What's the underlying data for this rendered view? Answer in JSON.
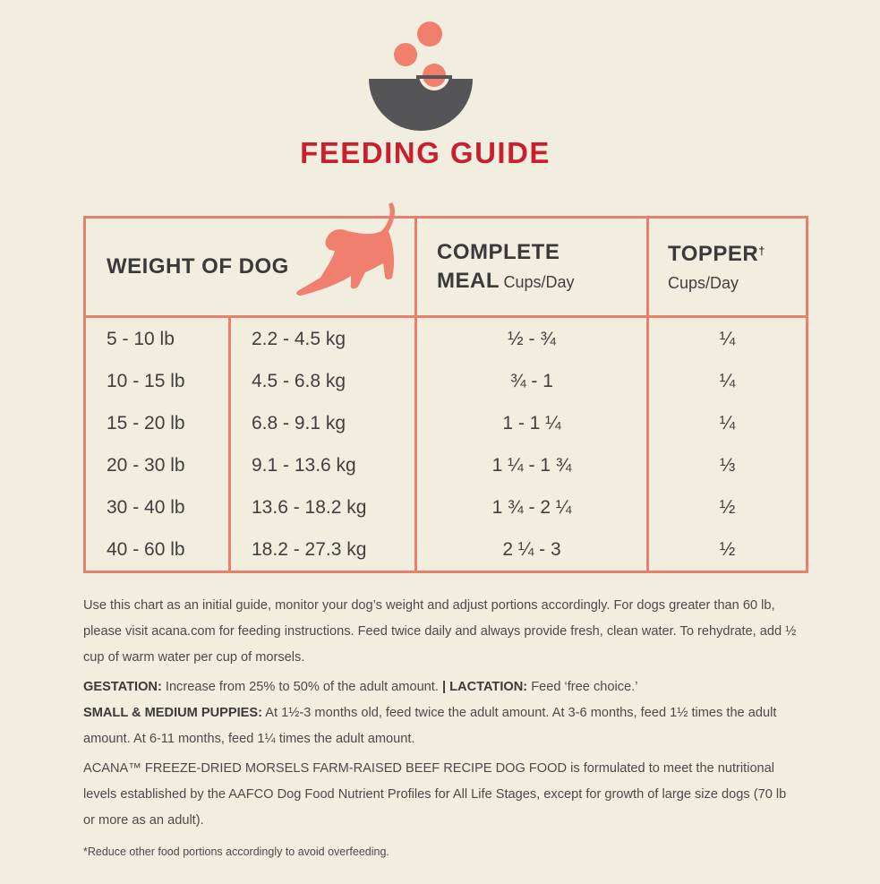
{
  "header": {
    "title": "FEEDING GUIDE"
  },
  "table": {
    "columns": {
      "weight": "WEIGHT OF DOG",
      "complete": {
        "line1": "COMPLETE",
        "line2": "MEAL",
        "unit": "Cups/Day"
      },
      "topper": {
        "title": "TOPPER",
        "mark": "†",
        "unit": "Cups/Day"
      }
    },
    "rows": [
      [
        "5 - 10 lb",
        "2.2 - 4.5 kg",
        "½ - ¾",
        "¼"
      ],
      [
        "10 - 15 lb",
        "4.5 - 6.8 kg",
        "¾ - 1",
        "¼"
      ],
      [
        "15 - 20 lb",
        "6.8 - 9.1 kg",
        "1 - 1 ¼",
        "¼"
      ],
      [
        "20 - 30 lb",
        "9.1 - 13.6 kg",
        "1 ¼ - 1 ¾",
        "⅓"
      ],
      [
        "30 - 40 lb",
        "13.6 - 18.2 kg",
        "1 ¾ - 2 ¼",
        "½"
      ],
      [
        "40 - 60 lb",
        "18.2 - 27.3 kg",
        "2 ¼ - 3",
        "½"
      ]
    ]
  },
  "notes": {
    "intro": "Use this chart as an initial guide, monitor your dog’s weight and adjust portions accordingly. For dogs greater than 60 lb, please visit acana.com for feeding instructions. Feed twice daily and always provide fresh, clean water. To rehydrate, add ½ cup of warm water per cup of morsels.",
    "gestation": {
      "label": "GESTATION:",
      "text": "Increase from 25% to 50% of the adult amount."
    },
    "lactation": {
      "label": "| LACTATION:",
      "text": "Feed ‘free choice.’"
    },
    "puppies": {
      "label": "SMALL & MEDIUM PUPPIES:",
      "text": "At 1½-3 months old, feed twice the adult amount. At 3-6 months, feed 1½ times the adult amount. At 6-11 months, feed 1¼ times the adult amount."
    },
    "statement": "ACANA™ FREEZE-DRIED MORSELS FARM-RAISED BEEF RECIPE DOG FOOD is formulated to meet the nutritional levels established by the AAFCO Dog Food Nutrient Profiles for All Life Stages, except for growth of large size dogs (70 lb or more as an adult).",
    "footnote": "*Reduce other food portions accordingly to avoid overfeeding."
  }
}
